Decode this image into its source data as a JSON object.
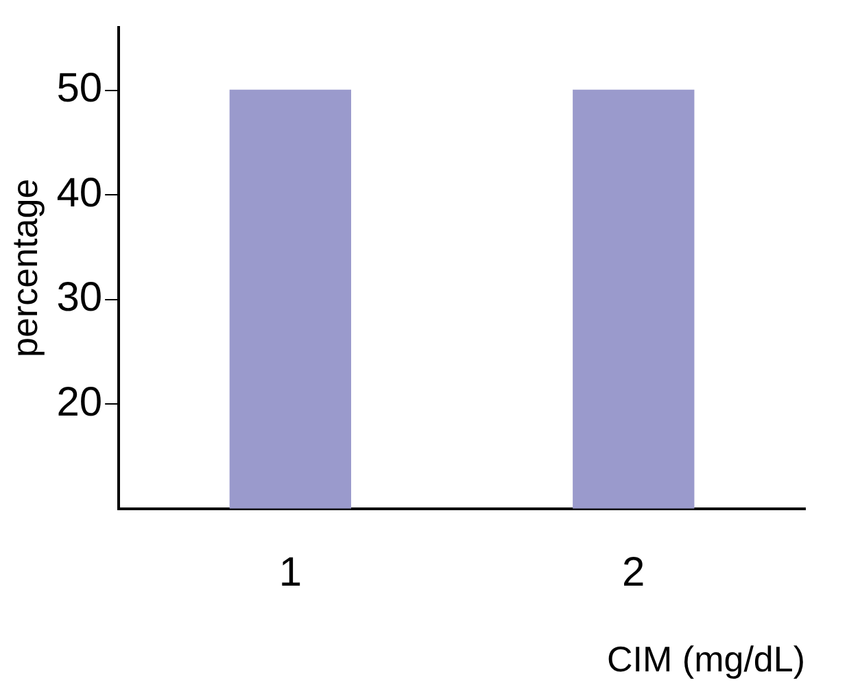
{
  "chart_data": {
    "type": "bar",
    "xlabel": "CIM (mg/dL)",
    "ylabel": "percentage",
    "categories": [
      "1",
      "2"
    ],
    "values": [
      50,
      50
    ],
    "color": "#9a9acc",
    "ylim": [
      10,
      56
    ],
    "yticks": [
      20,
      30,
      40,
      50
    ],
    "grid": false,
    "legend": false
  }
}
